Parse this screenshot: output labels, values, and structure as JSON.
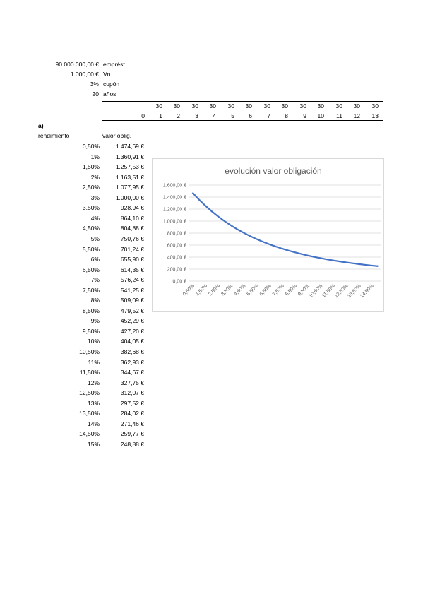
{
  "header": {
    "prestamo_value": "90.000.000,00 €",
    "prestamo_label": "emprést.",
    "vn_value": "1.000,00 €",
    "vn_label": "Vn",
    "cupon_value": "3%",
    "cupon_label": "cupón",
    "anos_value": "20",
    "anos_label": "años"
  },
  "cashflow": {
    "flows": [
      "",
      "30",
      "30",
      "30",
      "30",
      "30",
      "30",
      "30",
      "30",
      "30",
      "30",
      "30",
      "30",
      "30"
    ],
    "periods": [
      "0",
      "1",
      "2",
      "3",
      "4",
      "5",
      "6",
      "7",
      "8",
      "9",
      "10",
      "11",
      "12",
      "13"
    ]
  },
  "section": {
    "label": "a)",
    "col_rendimiento": "rendimiento",
    "col_valor": "valor oblig."
  },
  "rows": [
    {
      "r": "0,50%",
      "v": "1.474,69 €"
    },
    {
      "r": "1%",
      "v": "1.360,91 €"
    },
    {
      "r": "1,50%",
      "v": "1.257,53 €"
    },
    {
      "r": "2%",
      "v": "1.163,51 €"
    },
    {
      "r": "2,50%",
      "v": "1.077,95 €"
    },
    {
      "r": "3%",
      "v": "1.000,00 €"
    },
    {
      "r": "3,50%",
      "v": "928,94 €"
    },
    {
      "r": "4%",
      "v": "864,10 €"
    },
    {
      "r": "4,50%",
      "v": "804,88 €"
    },
    {
      "r": "5%",
      "v": "750,76 €"
    },
    {
      "r": "5,50%",
      "v": "701,24 €"
    },
    {
      "r": "6%",
      "v": "655,90 €"
    },
    {
      "r": "6,50%",
      "v": "614,35 €"
    },
    {
      "r": "7%",
      "v": "576,24 €"
    },
    {
      "r": "7,50%",
      "v": "541,25 €"
    },
    {
      "r": "8%",
      "v": "509,09 €"
    },
    {
      "r": "8,50%",
      "v": "479,52 €"
    },
    {
      "r": "9%",
      "v": "452,29 €"
    },
    {
      "r": "9,50%",
      "v": "427,20 €"
    },
    {
      "r": "10%",
      "v": "404,05 €"
    },
    {
      "r": "10,50%",
      "v": "382,68 €"
    },
    {
      "r": "11%",
      "v": "362,93 €"
    },
    {
      "r": "11,50%",
      "v": "344,67 €"
    },
    {
      "r": "12%",
      "v": "327,75 €"
    },
    {
      "r": "12,50%",
      "v": "312,07 €"
    },
    {
      "r": "13%",
      "v": "297,52 €"
    },
    {
      "r": "13,50%",
      "v": "284,02 €"
    },
    {
      "r": "14%",
      "v": "271,46 €"
    },
    {
      "r": "14,50%",
      "v": "259,77 €"
    },
    {
      "r": "15%",
      "v": "248,88 €"
    }
  ],
  "chart_data": {
    "type": "line",
    "title": "evolución valor obligación",
    "xlabel": "",
    "ylabel": "",
    "x_tick_labels": [
      "0,50%",
      "1,50%",
      "2,50%",
      "3,50%",
      "4,50%",
      "5,50%",
      "6,50%",
      "7,50%",
      "8,50%",
      "9,50%",
      "10,50%",
      "11,50%",
      "12,50%",
      "13,50%",
      "14,50%"
    ],
    "y_tick_labels": [
      "0,00 €",
      "200,00 €",
      "400,00 €",
      "600,00 €",
      "800,00 €",
      "1.000,00 €",
      "1.200,00 €",
      "1.400,00 €",
      "1.600,00 €"
    ],
    "ylim": [
      0,
      1600
    ],
    "grid": true,
    "series_color": "#4472c4",
    "x": [
      0.5,
      1,
      1.5,
      2,
      2.5,
      3,
      3.5,
      4,
      4.5,
      5,
      5.5,
      6,
      6.5,
      7,
      7.5,
      8,
      8.5,
      9,
      9.5,
      10,
      10.5,
      11,
      11.5,
      12,
      12.5,
      13,
      13.5,
      14,
      14.5,
      15
    ],
    "values": [
      1474.69,
      1360.91,
      1257.53,
      1163.51,
      1077.95,
      1000.0,
      928.94,
      864.1,
      804.88,
      750.76,
      701.24,
      655.9,
      614.35,
      576.24,
      541.25,
      509.09,
      479.52,
      452.29,
      427.2,
      404.05,
      382.68,
      362.93,
      344.67,
      327.75,
      312.07,
      297.52,
      284.02,
      271.46,
      259.77,
      248.88
    ]
  }
}
